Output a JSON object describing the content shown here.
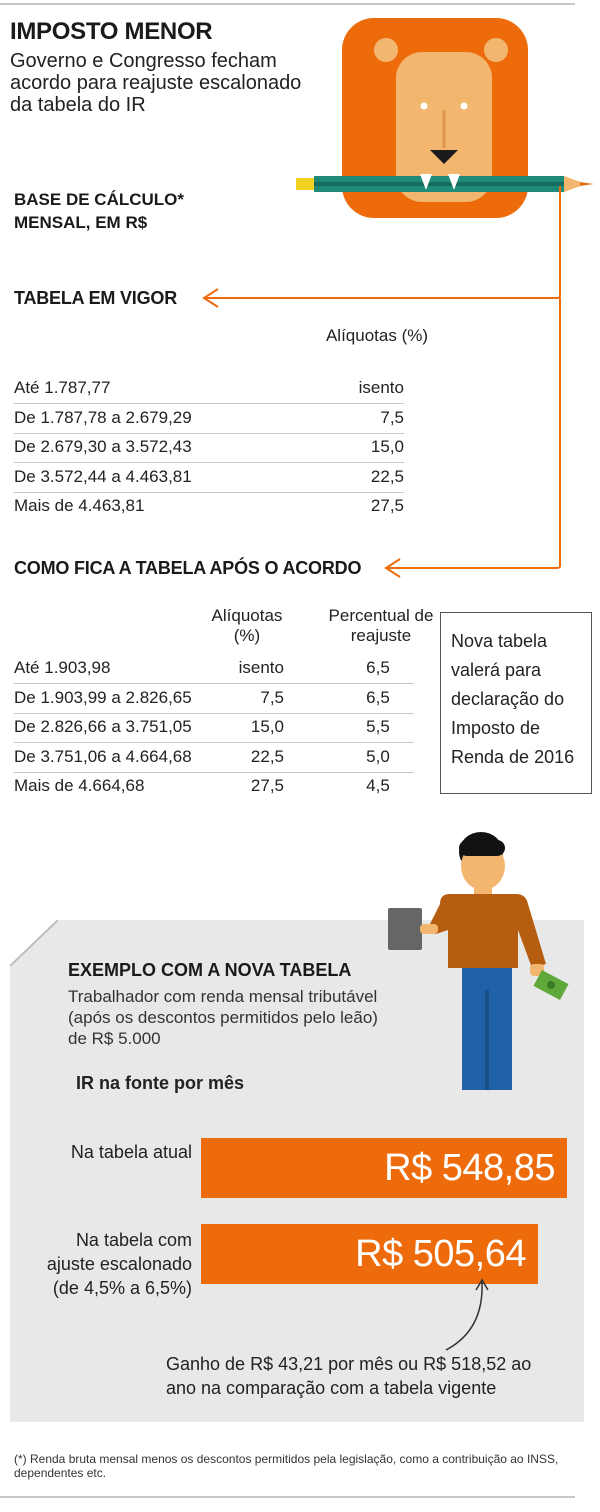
{
  "header": {
    "title": "IMPOSTO MENOR",
    "subtitle": "Governo e Congresso fecham acordo para reajuste escalonado da tabela do IR"
  },
  "base_label": "BASE DE CÁLCULO*\nMENSAL, EM R$",
  "current_table": {
    "title": "TABELA EM VIGOR",
    "col_aliquota": "Alíquotas (%)",
    "rows": [
      {
        "range": "Até 1.787,77",
        "aliquota": "isento"
      },
      {
        "range": "De 1.787,78 a 2.679,29",
        "aliquota": "7,5"
      },
      {
        "range": "De 2.679,30 a 3.572,43",
        "aliquota": "15,0"
      },
      {
        "range": "De 3.572,44 a 4.463,81",
        "aliquota": "22,5"
      },
      {
        "range": "Mais de 4.463,81",
        "aliquota": "27,5"
      }
    ]
  },
  "new_table": {
    "title": "COMO FICA A TABELA APÓS O ACORDO",
    "col_aliquota": "Alíquotas (%)",
    "col_reajuste": "Percentual de reajuste",
    "rows": [
      {
        "range": "Até 1.903,98",
        "aliquota": "isento",
        "reajuste": "6,5"
      },
      {
        "range": "De 1.903,99 a 2.826,65",
        "aliquota": "7,5",
        "reajuste": "6,5"
      },
      {
        "range": "De 2.826,66 a 3.751,05",
        "aliquota": "15,0",
        "reajuste": "5,5"
      },
      {
        "range": "De 3.751,06 a 4.664,68",
        "aliquota": "22,5",
        "reajuste": "5,0"
      },
      {
        "range": "Mais de 4.664,68",
        "aliquota": "27,5",
        "reajuste": "4,5"
      }
    ],
    "note": "Nova tabela valerá para declaração do Imposto de Renda de 2016"
  },
  "example": {
    "title": "EXEMPLO COM A NOVA TABELA",
    "description": "Trabalhador com renda mensal tributável (após os descontos permitidos pelo leão) de R$ 5.000",
    "ir_label": "IR na fonte por mês",
    "gain_text": "Ganho de R$ 43,21 por mês ou R$ 518,52 ao ano na comparação com a tabela vigente"
  },
  "chart_data": {
    "type": "bar",
    "title": "IR na fonte por mês",
    "categories": [
      "Na tabela atual",
      "Na tabela com ajuste escalonado (de 4,5% a 6,5%)"
    ],
    "values": [
      548.85,
      505.64
    ],
    "value_labels": [
      "R$ 548,85",
      "R$ 505,64"
    ],
    "xlim": [
      0,
      548.85
    ],
    "bar_color": "#ee6b0b",
    "grid": false
  },
  "footnote": "(*) Renda bruta mensal menos os descontos permitidos pela legislação, como a contribuição ao INSS, dependentes etc.",
  "colors": {
    "accent": "#ee6b0b",
    "panel": "#e8e8e8",
    "lion_mane": "#ee6b0b",
    "lion_face": "#f3b66f"
  },
  "icons": [
    "lion-icon",
    "pencil-icon",
    "worker-icon",
    "money-icon",
    "document-icon"
  ]
}
